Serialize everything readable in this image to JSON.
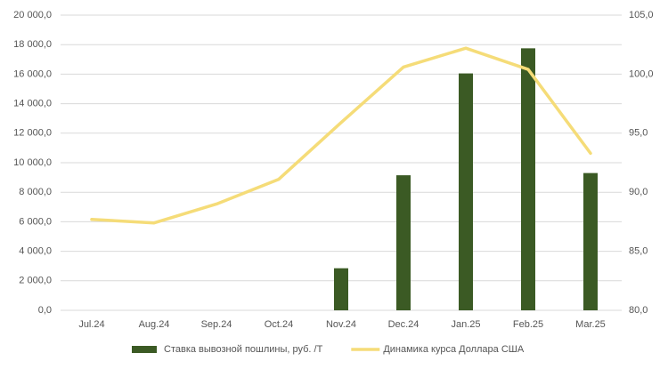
{
  "chart_data": {
    "type": "bar+line",
    "categories": [
      "Jul.24",
      "Aug.24",
      "Sep.24",
      "Oct.24",
      "Nov.24",
      "Dec.24",
      "Jan.25",
      "Feb.25",
      "Mar.25"
    ],
    "series": [
      {
        "name": "Ставка вывозной пошлины, руб. /Т",
        "type": "bar",
        "color": "#3b5a24",
        "values": [
          0,
          0,
          0,
          0,
          2850,
          9150,
          16050,
          17750,
          9300
        ]
      },
      {
        "name": "Динамика курса Доллара США",
        "type": "line",
        "axis": "y2",
        "color": "#f5dc78",
        "values": [
          87.7,
          87.4,
          89.0,
          91.1,
          95.9,
          100.6,
          102.2,
          100.4,
          93.3
        ]
      }
    ],
    "ylim": [
      0,
      20000
    ],
    "yticks": [
      {
        "value": 0,
        "label": "0,0"
      },
      {
        "value": 2000,
        "label": "2 000,0"
      },
      {
        "value": 4000,
        "label": "4 000,0"
      },
      {
        "value": 6000,
        "label": "6 000,0"
      },
      {
        "value": 8000,
        "label": "8 000,0"
      },
      {
        "value": 10000,
        "label": "10 000,0"
      },
      {
        "value": 12000,
        "label": "12 000,0"
      },
      {
        "value": 14000,
        "label": "14 000,0"
      },
      {
        "value": 16000,
        "label": "16 000,0"
      },
      {
        "value": 18000,
        "label": "18 000,0"
      },
      {
        "value": 20000,
        "label": "20 000,0"
      }
    ],
    "y2lim": [
      80,
      105
    ],
    "y2ticks": [
      {
        "value": 80,
        "label": "80,0"
      },
      {
        "value": 85,
        "label": "85,0"
      },
      {
        "value": 90,
        "label": "90,0"
      },
      {
        "value": 95,
        "label": "95,0"
      },
      {
        "value": 100,
        "label": "100,0"
      },
      {
        "value": 105,
        "label": "105,0"
      }
    ],
    "grid": true,
    "legend": "bottom"
  }
}
